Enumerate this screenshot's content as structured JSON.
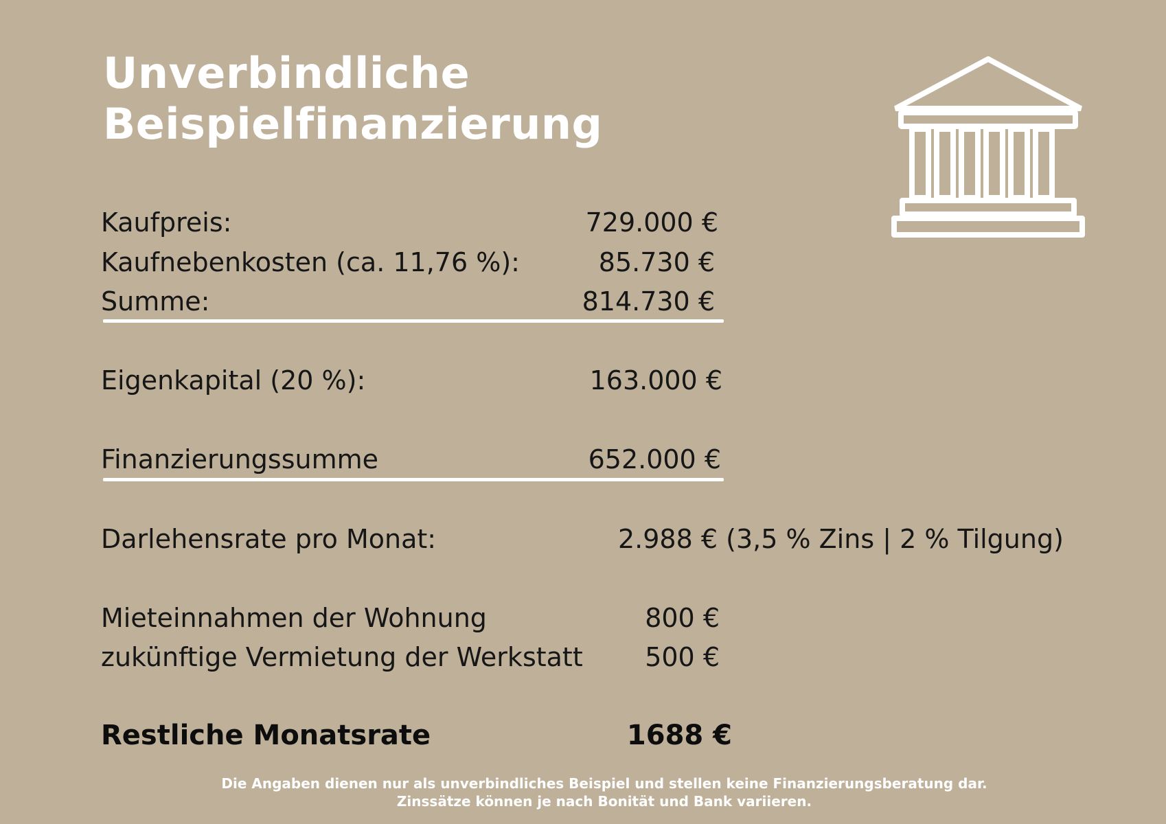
{
  "title": {
    "line1": "Unverbindliche",
    "line2": "Beispielfinanzierung"
  },
  "icon": "bank-icon",
  "rows": {
    "kaufpreis": {
      "label": "Kaufpreis:",
      "value": "729.000 €"
    },
    "kaufnebenkosten": {
      "label": "Kaufnebenkosten (ca. 11,76 %):",
      "value": "85.730 €"
    },
    "summe": {
      "label": "Summe:",
      "value": "814.730 €"
    },
    "eigenkapital": {
      "label": "Eigenkapital (20 %):",
      "value": "163.000 €"
    },
    "finanzierungssumme": {
      "label": "Finanzierungssumme",
      "value": "652.000 €"
    },
    "darlehensrate": {
      "label": "Darlehensrate pro Monat:",
      "value": "2.988 € (3,5 % Zins | 2 % Tilgung)"
    },
    "mieteinnahmen": {
      "label": "Mieteinnahmen der Wohnung",
      "value": "800 €"
    },
    "werkstatt": {
      "label": "zukünftige Vermietung der Werkstatt",
      "value": "500 €"
    },
    "restliche": {
      "label": "Restliche Monatsrate",
      "value": "1688 €"
    }
  },
  "disclaimer": {
    "line1": "Die Angaben dienen nur als unverbindliches Beispiel und stellen keine Finanzierungsberatung dar.",
    "line2": "Zinssätze können je nach Bonität und Bank variieren."
  },
  "colors": {
    "background": "#bfb09a",
    "accent": "#ffffff",
    "text": "#161616"
  }
}
